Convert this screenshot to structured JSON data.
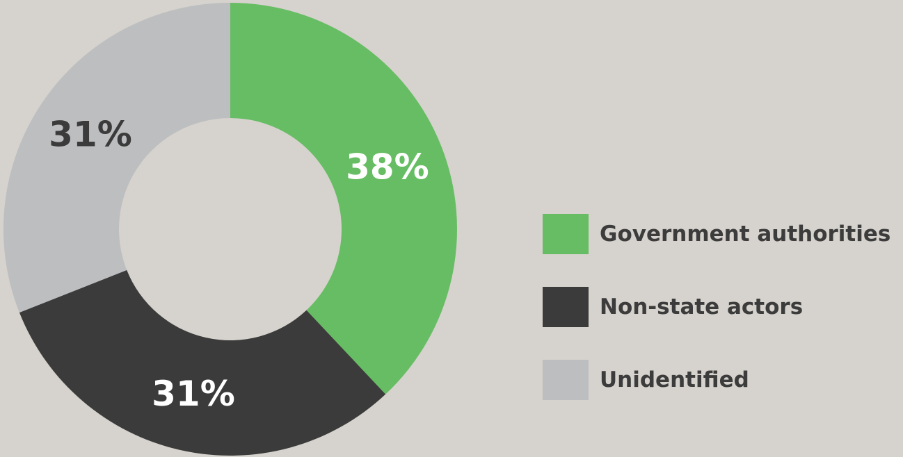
{
  "chart_data": {
    "type": "pie",
    "title": "",
    "categories": [
      "Government authorities",
      "Non-state actors",
      "Unidentified"
    ],
    "values": [
      38,
      31,
      31
    ],
    "value_labels": [
      "38%",
      "31%",
      "31%"
    ],
    "colors": [
      "#66bd63",
      "#3b3b3b",
      "#bcbec0"
    ],
    "label_colors": [
      "#ffffff",
      "#ffffff",
      "#3b3b3b"
    ],
    "donut": true,
    "start": "12 o'clock",
    "direction": "clockwise",
    "legend": {
      "placement": "right",
      "items": [
        {
          "label": "Government authorities",
          "color": "#66bd63"
        },
        {
          "label": "Non-state actors",
          "color": "#3b3b3b"
        },
        {
          "label": "Unidentified",
          "color": "#bcbec0"
        }
      ]
    }
  }
}
